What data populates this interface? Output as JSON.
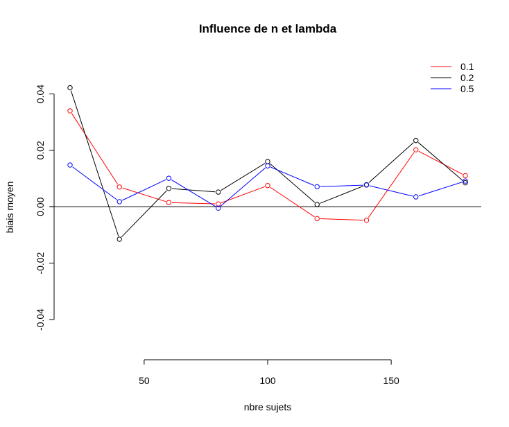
{
  "chart_data": {
    "type": "line",
    "title": "Influence de n et lambda",
    "xlabel": "nbre sujets",
    "ylabel": "biais moyen",
    "xlim": [
      20,
      180
    ],
    "ylim": [
      -0.04,
      0.04
    ],
    "x_ticks": [
      50,
      100,
      150
    ],
    "x_tick_labels": [
      "50",
      "100",
      "150"
    ],
    "y_ticks": [
      -0.04,
      -0.02,
      0.0,
      0.02,
      0.04
    ],
    "y_tick_labels": [
      "-0.04",
      "-0.02",
      "0.00",
      "0.02",
      "0.04"
    ],
    "reference_line_y": 0,
    "legend_position": "top-right",
    "x": [
      20,
      40,
      60,
      80,
      100,
      120,
      140,
      160,
      180
    ],
    "series": [
      {
        "name": "0.1",
        "color": "#ff0000",
        "values": [
          0.034,
          0.007,
          0.0015,
          0.001,
          0.0075,
          -0.0042,
          -0.0048,
          0.0202,
          0.011
        ]
      },
      {
        "name": "0.2",
        "color": "#000000",
        "values": [
          0.0422,
          -0.0115,
          0.0065,
          0.0052,
          0.016,
          0.0008,
          0.0078,
          0.0235,
          0.0085
        ]
      },
      {
        "name": "0.5",
        "color": "#0000ff",
        "values": [
          0.0148,
          0.0018,
          0.0101,
          -0.0005,
          0.0145,
          0.0071,
          0.0077,
          0.0035,
          0.0091
        ]
      }
    ]
  }
}
